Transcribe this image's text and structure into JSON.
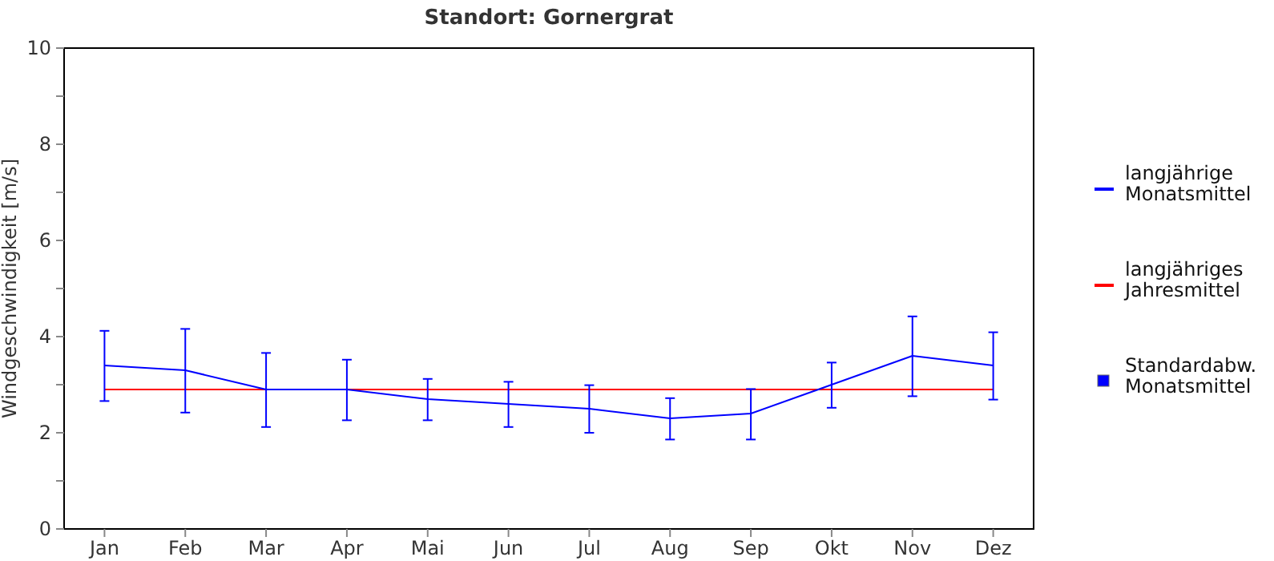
{
  "chart_data": {
    "type": "line",
    "title": "Standort: Gornergrat",
    "ylabel": "Windgeschwindigkeit [m/s]",
    "categories": [
      "Jan",
      "Feb",
      "Mar",
      "Apr",
      "Mai",
      "Jun",
      "Jul",
      "Aug",
      "Sep",
      "Okt",
      "Nov",
      "Dez"
    ],
    "series": [
      {
        "name": "langjährige Monatsmittel",
        "color": "#0000ff",
        "values": [
          3.4,
          3.3,
          2.9,
          2.9,
          2.7,
          2.6,
          2.5,
          2.3,
          2.4,
          3.0,
          3.6,
          3.4
        ],
        "errors": [
          [
            2.66,
            4.12
          ],
          [
            2.42,
            4.16
          ],
          [
            2.12,
            3.66
          ],
          [
            2.26,
            3.52
          ],
          [
            2.26,
            3.12
          ],
          [
            2.12,
            3.06
          ],
          [
            2.0,
            2.99
          ],
          [
            1.86,
            2.72
          ],
          [
            1.86,
            2.91
          ],
          [
            2.52,
            3.46
          ],
          [
            2.76,
            4.42
          ],
          [
            2.69,
            4.09
          ]
        ]
      }
    ],
    "ref_lines": [
      {
        "axis": "y",
        "value": 2.9,
        "label": "langjähriges Jahresmittel",
        "color": "#ff0000"
      }
    ],
    "annotations": [
      "Standardabw. Monatsmittel"
    ],
    "ylim": [
      0,
      10
    ],
    "yticks": [
      0,
      {
        "value": 1,
        "label": null
      },
      2,
      {
        "value": 3,
        "label": null
      },
      4,
      {
        "value": 5,
        "label": null
      },
      6,
      {
        "value": 7,
        "label": null
      },
      8,
      {
        "value": 9,
        "label": null
      },
      10
    ],
    "grid": false,
    "legend": "right",
    "marker": "none",
    "line_style": "solid"
  }
}
